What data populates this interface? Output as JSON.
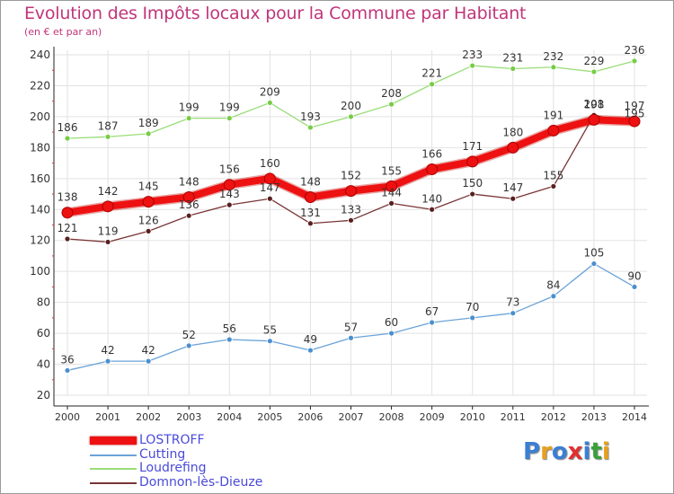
{
  "header": {
    "title": "Evolution des Impôts locaux pour la Commune par Habitant",
    "subtitle": "(en € et par an)"
  },
  "brand": {
    "text": "Proxiti",
    "letters": [
      "P",
      "r",
      "o",
      "x",
      "i",
      "t",
      "i"
    ],
    "letter_colors": [
      "#3a7fd4",
      "#e8a020",
      "#3a7fd4",
      "#e03030",
      "#3a7fd4",
      "#3aa03a",
      "#e8a020"
    ]
  },
  "colors": {
    "title": "#c0357a",
    "axis": "#222222",
    "grid": "#e2e2e2",
    "tick_label": "#333333",
    "data_label": "#333333",
    "legend_text": "#4a4ad8"
  },
  "chart_data": {
    "type": "line",
    "title": "Evolution des Impôts locaux pour la Commune par Habitant",
    "subtitle": "(en € et par an)",
    "xlabel": "",
    "ylabel": "",
    "x": [
      "2000",
      "2001",
      "2002",
      "2003",
      "2004",
      "2005",
      "2006",
      "2007",
      "2008",
      "2009",
      "2010",
      "2011",
      "2012",
      "2013",
      "2014"
    ],
    "ylim": [
      20,
      240
    ],
    "yticks": [
      20,
      40,
      60,
      80,
      100,
      120,
      140,
      160,
      180,
      200,
      220,
      240
    ],
    "grid": true,
    "legend_position": "bottom-left",
    "series": [
      {
        "name": "LOSTROFF",
        "values": [
          138,
          142,
          145,
          148,
          156,
          160,
          148,
          152,
          155,
          166,
          171,
          180,
          191,
          198,
          197
        ],
        "labels": [
          "138",
          "142",
          "145",
          "148",
          "156",
          "160",
          "148",
          "152",
          "155",
          "166",
          "171",
          "180",
          "191",
          "198",
          "197"
        ],
        "color": "#ee1111",
        "marker": "#ee1111",
        "width": "thick"
      },
      {
        "name": "Cutting",
        "values": [
          36,
          42,
          42,
          52,
          56,
          55,
          49,
          57,
          60,
          67,
          70,
          73,
          84,
          105,
          90
        ],
        "labels": [
          "36",
          "42",
          "42",
          "52",
          "56",
          "55",
          "49",
          "57",
          "60",
          "67",
          "70",
          "73",
          "84",
          "105",
          "90"
        ],
        "color": "#6ba3d8",
        "marker": "#4a8fd0",
        "width": "thin"
      },
      {
        "name": "Loudrefing",
        "values": [
          186,
          187,
          189,
          199,
          199,
          209,
          193,
          200,
          208,
          221,
          233,
          231,
          232,
          229,
          236
        ],
        "labels": [
          "186",
          "187",
          "189",
          "199",
          "199",
          "209",
          "193",
          "200",
          "208",
          "221",
          "233",
          "231",
          "232",
          "229",
          "236"
        ],
        "color": "#99dd77",
        "marker": "#77cc44",
        "width": "thin"
      },
      {
        "name": "Domnon-lès-Dieuze",
        "values": [
          121,
          119,
          126,
          136,
          143,
          147,
          131,
          133,
          144,
          140,
          150,
          147,
          155,
          201,
          195
        ],
        "labels": [
          "121",
          "119",
          "126",
          "136",
          "143",
          "147",
          "131",
          "133",
          "144",
          "140",
          "150",
          "147",
          "155",
          "201",
          "195"
        ],
        "color": "#7a3535",
        "marker": "#5a1f1f",
        "width": "thin"
      }
    ]
  }
}
